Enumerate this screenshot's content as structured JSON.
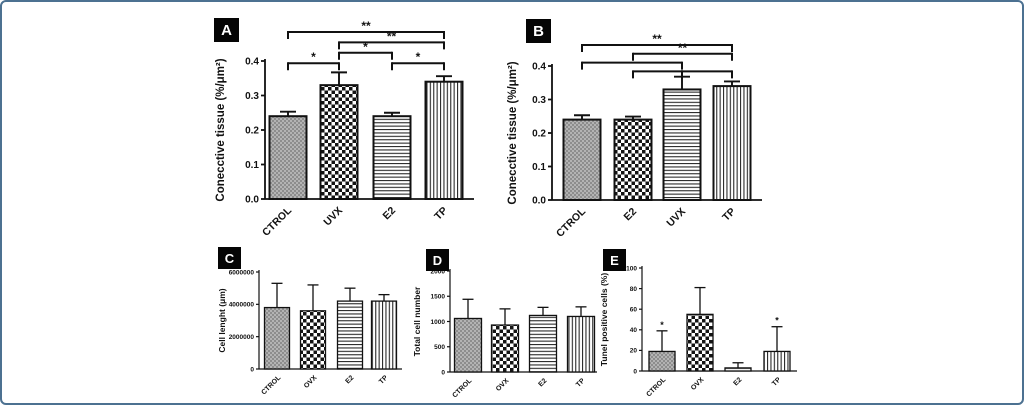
{
  "frame": {
    "background_color": "#ffffff",
    "border_color": "#4c7191"
  },
  "chart_data": [
    {
      "panel_label": "A",
      "type": "bar",
      "title": "",
      "ylabel": "Conecctive tissue (%/μm²)",
      "xlabel": "",
      "ylim": [
        0,
        0.4
      ],
      "ytick_labels": [
        "0.0",
        "0.1",
        "0.2",
        "0.3",
        "0.4"
      ],
      "categories": [
        "CTROL",
        "UVX",
        "E2",
        "TP"
      ],
      "values": [
        0.24,
        0.33,
        0.24,
        0.34
      ],
      "errors_plus": [
        0.013,
        0.037,
        0.01,
        0.016
      ],
      "bar_patterns": [
        "gray-fine-check",
        "checkerboard",
        "horizontal-lines",
        "vertical-lines"
      ],
      "significance_brackets": [
        {
          "from": "CTROL",
          "to": "TP",
          "label": "**",
          "row": 0
        },
        {
          "from": "UVX",
          "to": "TP",
          "label": "**",
          "row": 1
        },
        {
          "from": "UVX",
          "to": "E2",
          "label": "*",
          "row": 2
        },
        {
          "from": "CTROL",
          "to": "UVX",
          "label": "*",
          "row": 3
        },
        {
          "from": "E2",
          "to": "TP",
          "label": "*",
          "row": 3
        }
      ],
      "bar_stars": []
    },
    {
      "panel_label": "B",
      "type": "bar",
      "title": "",
      "ylabel": "Conecctive tissue (%/μm²)",
      "xlabel": "",
      "ylim": [
        0,
        0.4
      ],
      "ytick_labels": [
        "0.0",
        "0.1",
        "0.2",
        "0.3",
        "0.4"
      ],
      "categories": [
        "CTROL",
        "E2",
        "UVX",
        "TP"
      ],
      "values": [
        0.24,
        0.24,
        0.33,
        0.34
      ],
      "errors_plus": [
        0.013,
        0.009,
        0.038,
        0.014
      ],
      "bar_patterns": [
        "gray-fine-check",
        "checkerboard",
        "horizontal-lines",
        "vertical-lines"
      ],
      "significance_brackets": [
        {
          "from": "CTROL",
          "to": "TP",
          "label": "**",
          "row": 0
        },
        {
          "from": "E2",
          "to": "TP",
          "label": "**",
          "row": 1
        },
        {
          "from": "CTROL",
          "to": "UVX",
          "label": "",
          "row": 2
        },
        {
          "from": "E2",
          "to": "UVX",
          "label": "",
          "row": 3
        },
        {
          "from": "UVX",
          "to": "TP",
          "label": "",
          "row": 3
        }
      ],
      "bar_stars": []
    },
    {
      "panel_label": "C",
      "type": "bar",
      "title": "",
      "ylabel": "Cell lenght (μm)",
      "xlabel": "",
      "ylim": [
        0,
        6000000
      ],
      "ytick_labels": [
        "0",
        "2000000",
        "4000000",
        "6000000"
      ],
      "categories": [
        "CTROL",
        "OVX",
        "E2",
        "TP"
      ],
      "values": [
        3800000,
        3600000,
        4200000,
        4200000
      ],
      "errors_plus": [
        1500000,
        1600000,
        800000,
        400000
      ],
      "bar_patterns": [
        "gray-fine-check",
        "checkerboard",
        "horizontal-lines",
        "vertical-lines"
      ],
      "significance_brackets": [],
      "bar_stars": []
    },
    {
      "panel_label": "D",
      "type": "bar",
      "title": "",
      "ylabel": "Total cell number",
      "xlabel": "",
      "ylim": [
        0,
        2000
      ],
      "ytick_labels": [
        "0",
        "500",
        "1000",
        "1500",
        "2000"
      ],
      "categories": [
        "CTROL",
        "OVX",
        "E2",
        "TP"
      ],
      "values": [
        1060,
        930,
        1120,
        1100
      ],
      "errors_plus": [
        380,
        320,
        160,
        190
      ],
      "bar_patterns": [
        "gray-fine-check",
        "checkerboard",
        "horizontal-lines",
        "vertical-lines"
      ],
      "significance_brackets": [],
      "bar_stars": []
    },
    {
      "panel_label": "E",
      "type": "bar",
      "title": "",
      "ylabel": "Tunel positive cells (%)",
      "xlabel": "",
      "ylim": [
        0,
        100
      ],
      "ytick_labels": [
        "0",
        "20",
        "40",
        "60",
        "80",
        "100"
      ],
      "categories": [
        "CTROL",
        "OVX",
        "E2",
        "TP"
      ],
      "values": [
        19,
        55,
        3,
        19
      ],
      "errors_plus": [
        20,
        26,
        5,
        24
      ],
      "bar_patterns": [
        "gray-fine-check",
        "checkerboard",
        "horizontal-lines",
        "vertical-lines"
      ],
      "significance_brackets": [],
      "bar_stars": [
        {
          "category": "CTROL",
          "label": "*"
        },
        {
          "category": "TP",
          "label": "*"
        }
      ]
    }
  ]
}
